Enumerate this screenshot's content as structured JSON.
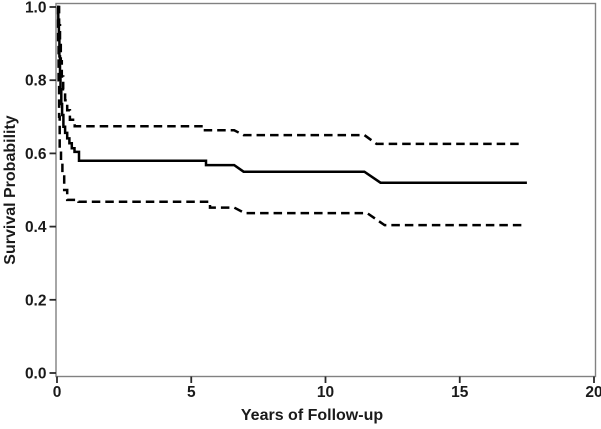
{
  "figure": {
    "background": "#ffffff",
    "frame_color": "#818181",
    "tick_color": "#2a2a2a",
    "text_color": "#1a1a1a",
    "line_color": "#000000"
  },
  "chart_data": {
    "type": "line",
    "subtype": "kaplan-meier-step",
    "title": "",
    "xlabel": "Years of Follow-up",
    "ylabel": "Survival Probability",
    "xlim": [
      0,
      20
    ],
    "ylim": [
      0.0,
      1.0
    ],
    "xticks": [
      {
        "value": 0,
        "label": "0"
      },
      {
        "value": 5,
        "label": "5"
      },
      {
        "value": 10,
        "label": "10"
      },
      {
        "value": 15,
        "label": "15"
      },
      {
        "value": 20,
        "label": "20"
      }
    ],
    "yticks": [
      {
        "value": 0.0,
        "label": "0.0"
      },
      {
        "value": 0.2,
        "label": "0.2"
      },
      {
        "value": 0.4,
        "label": "0.4"
      },
      {
        "value": 0.6,
        "label": "0.6"
      },
      {
        "value": 0.8,
        "label": "0.8"
      },
      {
        "value": 1.0,
        "label": "1.0"
      }
    ],
    "grid": false,
    "legend": "none",
    "description": "Survival curve (solid line) with upper and lower confidence bounds (dashed lines); steep early drop from 1.0 to ~0.58 within first year, small steps near years 5.5, 6.8 and 12, curves end near year 17.5",
    "series": [
      {
        "name": "survival-estimate",
        "style": "solid",
        "points": [
          [
            0.0,
            1.0
          ],
          [
            0.05,
            1.0
          ],
          [
            0.05,
            0.955
          ],
          [
            0.07,
            0.955
          ],
          [
            0.07,
            0.91
          ],
          [
            0.09,
            0.91
          ],
          [
            0.09,
            0.865
          ],
          [
            0.11,
            0.865
          ],
          [
            0.11,
            0.82
          ],
          [
            0.13,
            0.82
          ],
          [
            0.13,
            0.775
          ],
          [
            0.16,
            0.775
          ],
          [
            0.16,
            0.735
          ],
          [
            0.19,
            0.735
          ],
          [
            0.19,
            0.705
          ],
          [
            0.24,
            0.705
          ],
          [
            0.24,
            0.673
          ],
          [
            0.3,
            0.673
          ],
          [
            0.3,
            0.656
          ],
          [
            0.38,
            0.656
          ],
          [
            0.38,
            0.641
          ],
          [
            0.46,
            0.641
          ],
          [
            0.46,
            0.628
          ],
          [
            0.55,
            0.628
          ],
          [
            0.55,
            0.614
          ],
          [
            0.65,
            0.614
          ],
          [
            0.65,
            0.604
          ],
          [
            0.82,
            0.604
          ],
          [
            0.82,
            0.58
          ],
          [
            5.55,
            0.58
          ],
          [
            5.55,
            0.568
          ],
          [
            6.6,
            0.568
          ],
          [
            6.95,
            0.55
          ],
          [
            11.45,
            0.55
          ],
          [
            12.05,
            0.52
          ],
          [
            17.5,
            0.52
          ]
        ]
      },
      {
        "name": "upper-confidence-bound",
        "style": "dashed",
        "points": [
          [
            0.0,
            1.0
          ],
          [
            0.08,
            1.0
          ],
          [
            0.08,
            0.95
          ],
          [
            0.11,
            0.95
          ],
          [
            0.11,
            0.9
          ],
          [
            0.14,
            0.9
          ],
          [
            0.14,
            0.852
          ],
          [
            0.18,
            0.852
          ],
          [
            0.18,
            0.81
          ],
          [
            0.23,
            0.81
          ],
          [
            0.23,
            0.775
          ],
          [
            0.3,
            0.775
          ],
          [
            0.3,
            0.745
          ],
          [
            0.38,
            0.745
          ],
          [
            0.38,
            0.718
          ],
          [
            0.48,
            0.718
          ],
          [
            0.48,
            0.692
          ],
          [
            0.66,
            0.692
          ],
          [
            0.66,
            0.674
          ],
          [
            5.45,
            0.674
          ],
          [
            5.45,
            0.663
          ],
          [
            6.6,
            0.663
          ],
          [
            6.95,
            0.65
          ],
          [
            11.45,
            0.65
          ],
          [
            11.9,
            0.626
          ],
          [
            17.3,
            0.626
          ]
        ]
      },
      {
        "name": "lower-confidence-bound",
        "style": "dashed",
        "points": [
          [
            0.0,
            1.0
          ],
          [
            0.04,
            1.0
          ],
          [
            0.04,
            0.9
          ],
          [
            0.06,
            0.9
          ],
          [
            0.06,
            0.8
          ],
          [
            0.08,
            0.8
          ],
          [
            0.08,
            0.7
          ],
          [
            0.1,
            0.7
          ],
          [
            0.1,
            0.61
          ],
          [
            0.15,
            0.61
          ],
          [
            0.15,
            0.582
          ],
          [
            0.2,
            0.582
          ],
          [
            0.2,
            0.537
          ],
          [
            0.27,
            0.537
          ],
          [
            0.27,
            0.5
          ],
          [
            0.38,
            0.5
          ],
          [
            0.38,
            0.473
          ],
          [
            0.8,
            0.473
          ],
          [
            0.8,
            0.468
          ],
          [
            5.7,
            0.468
          ],
          [
            5.7,
            0.452
          ],
          [
            6.6,
            0.452
          ],
          [
            7.0,
            0.437
          ],
          [
            11.55,
            0.437
          ],
          [
            12.2,
            0.404
          ],
          [
            17.4,
            0.404
          ]
        ]
      }
    ]
  }
}
